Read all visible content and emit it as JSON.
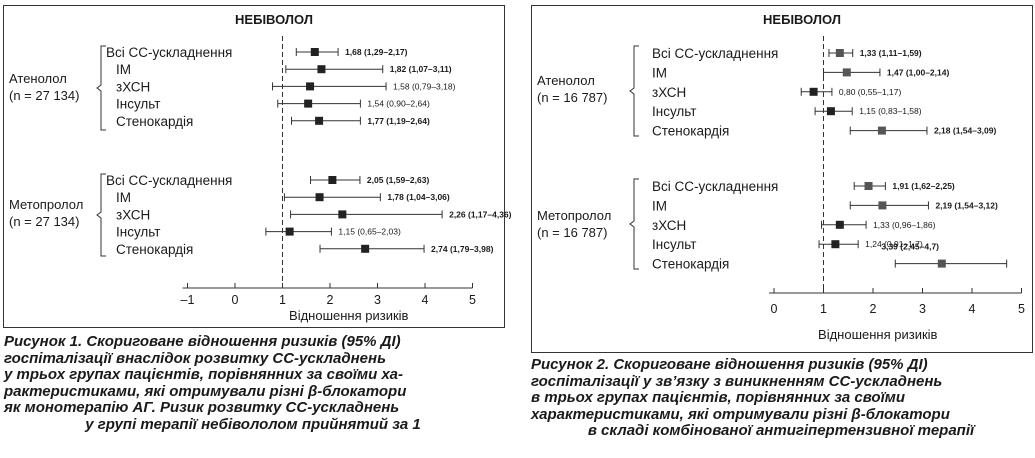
{
  "charts": [
    {
      "drug_title": "НЕБІВОЛОЛ",
      "xlabel": "Відношення ризиків",
      "caption": [
        "Рисунок 1. Скориговане відношення ризиків (95% ДІ)",
        "госпіталізації внаслідок розвитку СС-ускладнень",
        "у трьох групах пацієнтів, порівнянних за своїми ха-",
        "рактеристиками, які отримували різні β-блокатори",
        "як монотерапію АГ. Ризик розвитку СС-ускладнень",
        "у групі терапії небівололом прийнятий за 1"
      ],
      "groups": [
        {
          "name_lines": [
            "Атенолол",
            "(n = 27 134)"
          ]
        },
        {
          "name_lines": [
            "Метопролол",
            "(n = 27 134)"
          ]
        }
      ]
    },
    {
      "drug_title": "НЕБІВОЛОЛ",
      "xlabel": "Відношення ризиків",
      "caption": [
        "Рисунок 2. Скориговане відношення ризиків (95% ДІ)",
        "госпіталізації у зв’язку з виникненням СС-ускладнень",
        "в трьох групах пацієнтів, порівнянних за своїми",
        "характеристиками, які отримували різні β-блокатори",
        "в складі комбінованої антигіпертензивної терапії"
      ],
      "groups": [
        {
          "name_lines": [
            "Атенолол",
            "(n = 16 787)"
          ]
        },
        {
          "name_lines": [
            "Метопролол",
            "(n = 16 787)"
          ]
        }
      ]
    }
  ],
  "chart_data": [
    {
      "type": "forest",
      "title": "НЕБІВОЛОЛ",
      "xlabel": "Відношення ризиків",
      "xlim": [
        -1,
        5
      ],
      "xticks": [
        "–1",
        "0",
        "1",
        "2",
        "3",
        "4",
        "5"
      ],
      "xtick_values": [
        -1,
        0,
        1,
        2,
        3,
        4,
        5
      ],
      "reference_line": 1,
      "groups": [
        {
          "name": "Атенолол (n = 27 134)",
          "rows": [
            {
              "label": "Всі СС-ускладнення",
              "hr": 1.68,
              "lo": 1.29,
              "hi": 2.17,
              "text": "1,68 (1,29–2,17)",
              "bold": true
            },
            {
              "label": "ІМ",
              "hr": 1.82,
              "lo": 1.07,
              "hi": 3.11,
              "text": "1,82 (1,07–3,11)",
              "bold": true
            },
            {
              "label": "зХСН",
              "hr": 1.58,
              "lo": 0.79,
              "hi": 3.18,
              "text": "1,58 (0,79–3,18)",
              "bold": false
            },
            {
              "label": "Інсульт",
              "hr": 1.54,
              "lo": 0.9,
              "hi": 2.64,
              "text": "1,54 (0,90–2,64)",
              "bold": false
            },
            {
              "label": "Стенокардія",
              "hr": 1.77,
              "lo": 1.19,
              "hi": 2.64,
              "text": "1,77 (1,19–2,64)",
              "bold": true
            }
          ]
        },
        {
          "name": "Метопролол (n = 27 134)",
          "rows": [
            {
              "label": "Всі СС-ускладнення",
              "hr": 2.05,
              "lo": 1.59,
              "hi": 2.63,
              "text": "2,05 (1,59–2,63)",
              "bold": true
            },
            {
              "label": "ІМ",
              "hr": 1.78,
              "lo": 1.04,
              "hi": 3.06,
              "text": "1,78 (1,04–3,06)",
              "bold": true
            },
            {
              "label": "зХСН",
              "hr": 2.26,
              "lo": 1.17,
              "hi": 4.36,
              "text": "2,26 (1,17–4,36)",
              "bold": true
            },
            {
              "label": "Інсульт",
              "hr": 1.15,
              "lo": 0.65,
              "hi": 2.03,
              "text": "1,15 (0,65–2,03)",
              "bold": false
            },
            {
              "label": "Стенокардія",
              "hr": 2.74,
              "lo": 1.79,
              "hi": 3.98,
              "text": "2,74 (1,79–3,98)",
              "bold": true
            }
          ]
        }
      ]
    },
    {
      "type": "forest",
      "title": "НЕБІВОЛОЛ",
      "xlabel": "Відношення ризиків",
      "xlim": [
        0,
        5
      ],
      "xticks": [
        "0",
        "1",
        "2",
        "3",
        "4",
        "5"
      ],
      "xtick_values": [
        0,
        1,
        2,
        3,
        4,
        5
      ],
      "reference_line": 1,
      "groups": [
        {
          "name": "Атенолол (n = 16 787)",
          "rows": [
            {
              "label": "Всі СС-ускладнення",
              "hr": 1.33,
              "lo": 1.11,
              "hi": 1.59,
              "text": "1,33 (1,11–1,59)",
              "bold": true
            },
            {
              "label": "ІМ",
              "hr": 1.47,
              "lo": 1.0,
              "hi": 2.14,
              "text": "1,47 (1,00–2,14)",
              "bold": true
            },
            {
              "label": "зХСН",
              "hr": 0.8,
              "lo": 0.55,
              "hi": 1.17,
              "text": "0,80 (0,55–1,17)",
              "bold": false
            },
            {
              "label": "Інсульт",
              "hr": 1.15,
              "lo": 0.83,
              "hi": 1.58,
              "text": "1,15 (0,83–1,58)",
              "bold": false
            },
            {
              "label": "Стенокардія",
              "hr": 2.18,
              "lo": 1.54,
              "hi": 3.09,
              "text": "2,18 (1,54–3,09)",
              "bold": true
            }
          ]
        },
        {
          "name": "Метопролол (n = 16 787)",
          "rows": [
            {
              "label": "Всі СС-ускладнення",
              "hr": 1.91,
              "lo": 1.62,
              "hi": 2.25,
              "text": "1,91 (1,62–2,25)",
              "bold": true
            },
            {
              "label": "ІМ",
              "hr": 2.19,
              "lo": 1.54,
              "hi": 3.12,
              "text": "2,19 (1,54–3,12)",
              "bold": true
            },
            {
              "label": "зХСН",
              "hr": 1.33,
              "lo": 0.96,
              "hi": 1.86,
              "text": "1,33 (0,96–1,86)",
              "bold": false
            },
            {
              "label": "Інсульт",
              "hr": 1.24,
              "lo": 0.91,
              "hi": 1.7,
              "text": "1,24 (0,91–1,7)",
              "bold": false
            },
            {
              "label": "Стенокардія",
              "hr": 3.39,
              "lo": 2.45,
              "hi": 4.7,
              "text": "3,39 (2,45–4,7)",
              "bold": true
            }
          ]
        }
      ]
    }
  ]
}
